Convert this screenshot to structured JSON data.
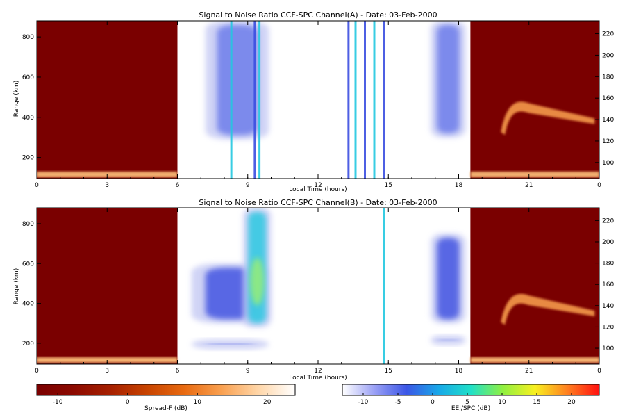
{
  "chart_data": [
    {
      "type": "heatmap",
      "title": "Signal to Noise Ratio CCF-SPC Channel(A) - Date: 03-Feb-2000",
      "xlabel": "Local Time (hours)",
      "ylabel": "Range (km)",
      "xlim": [
        0,
        24
      ],
      "ylim": [
        95,
        880
      ],
      "xticks": [
        "0",
        "3",
        "6",
        "9",
        "12",
        "15",
        "18",
        "21",
        "0"
      ],
      "yticks_left": [
        "200",
        "400",
        "600",
        "800"
      ],
      "yticks_right": [
        "100",
        "120",
        "140",
        "160",
        "180",
        "200",
        "220"
      ],
      "regions": [
        {
          "what": "Spread-F night-time background",
          "from_hour": 0,
          "to_hour": 6,
          "snr_db": -10
        },
        {
          "what": "EEJ/SPC daytime echoes",
          "from_hour": 6,
          "to_hour": 18.5
        },
        {
          "what": "Spread-F night-time background",
          "from_hour": 18.5,
          "to_hour": 24,
          "snr_db": -10
        }
      ],
      "echo_blobs": [
        {
          "hour_start": 7.2,
          "hour_end": 9.9,
          "range_low_km": 290,
          "range_high_km": 880,
          "snr_db": -8
        },
        {
          "hour_start": 16.8,
          "hour_end": 18.3,
          "range_low_km": 300,
          "range_high_km": 880,
          "snr_db": -7
        }
      ],
      "vertical_streaks_hours": [
        8.3,
        9.3,
        9.5,
        13.3,
        13.6,
        14.0,
        14.4,
        14.8
      ],
      "spread_f_plume": {
        "hour_start": 19.8,
        "hour_end": 23.8,
        "range_peak_km": 470,
        "range_base_km": 340,
        "snr_db": 8
      }
    },
    {
      "type": "heatmap",
      "title": "Signal to Noise Ratio CCF-SPC Channel(B) - Date: 03-Feb-2000",
      "xlabel": "Local Time (hours)",
      "ylabel": "Range (km)",
      "xlim": [
        0,
        24
      ],
      "ylim": [
        95,
        880
      ],
      "xticks": [
        "0",
        "3",
        "6",
        "9",
        "12",
        "15",
        "18",
        "21",
        "0"
      ],
      "yticks_left": [
        "200",
        "400",
        "600",
        "800"
      ],
      "yticks_right": [
        "100",
        "120",
        "140",
        "160",
        "180",
        "200",
        "220"
      ],
      "regions": [
        {
          "what": "Spread-F night-time background",
          "from_hour": 0,
          "to_hour": 6,
          "snr_db": -10
        },
        {
          "what": "EEJ/SPC daytime echoes",
          "from_hour": 6,
          "to_hour": 18.5
        },
        {
          "what": "Spread-F night-time background",
          "from_hour": 18.5,
          "to_hour": 24,
          "snr_db": -10
        }
      ],
      "echo_blobs": [
        {
          "hour_start": 6.6,
          "hour_end": 9.9,
          "range_low_km": 300,
          "range_high_km": 600,
          "snr_db": -4
        },
        {
          "hour_start": 8.8,
          "hour_end": 10.0,
          "range_low_km": 280,
          "range_high_km": 880,
          "snr_db": 1
        },
        {
          "hour_start": 6.6,
          "hour_end": 9.9,
          "range_low_km": 170,
          "range_high_km": 220,
          "snr_db": -4
        },
        {
          "hour_start": 16.8,
          "hour_end": 18.3,
          "range_low_km": 300,
          "range_high_km": 750,
          "snr_db": -3
        },
        {
          "hour_start": 16.8,
          "hour_end": 18.3,
          "range_low_km": 190,
          "range_high_km": 240,
          "snr_db": -6
        }
      ],
      "vertical_streaks_hours": [
        14.8
      ],
      "spread_f_plume": {
        "hour_start": 19.8,
        "hour_end": 23.8,
        "range_peak_km": 440,
        "range_base_km": 320,
        "snr_db": 8
      }
    }
  ],
  "colorbars": [
    {
      "label": "Spread-F (dB)",
      "ticks": [
        "-10",
        "0",
        "10",
        "20"
      ],
      "range": [
        -13,
        24
      ],
      "colors": [
        "#7a0000",
        "#8c0a00",
        "#a62000",
        "#c84400",
        "#e86a10",
        "#f9a050",
        "#ffd6a8",
        "#ffffff"
      ]
    },
    {
      "label": "EEJ/SPC (dB)",
      "ticks": [
        "-10",
        "-5",
        "0",
        "5",
        "10",
        "15",
        "20"
      ],
      "range": [
        -13,
        24
      ],
      "colors": [
        "#ffffff",
        "#9aa0f5",
        "#3b56e6",
        "#18a8e8",
        "#20e0c8",
        "#90f040",
        "#f8f020",
        "#ff8020",
        "#ff1010"
      ]
    }
  ],
  "colors": {
    "spread_f_background": "#7a0000",
    "echo_blue": "#3a4ee0",
    "echo_light": "#c8ccf4",
    "echo_cyan": "#22c8e0",
    "echo_green": "#9ef070",
    "plume": "#f59a4c"
  }
}
